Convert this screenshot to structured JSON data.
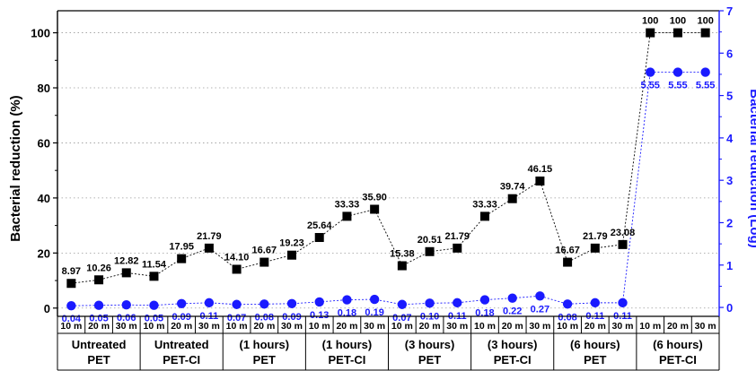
{
  "chart_data": {
    "type": "line",
    "ylabel": "Bacterial reduction (%)",
    "y2label": "Bacterial reduction (Log)",
    "ylim": [
      -3,
      108
    ],
    "y2lim": [
      -0.21,
      7
    ],
    "yticks": [
      0,
      20,
      40,
      60,
      80,
      100
    ],
    "y2ticks": [
      0,
      1,
      2,
      3,
      4,
      5,
      6,
      7
    ],
    "x": [
      "10 m",
      "20 m",
      "30 m",
      "10 m",
      "20 m",
      "30 m",
      "10 m",
      "20 m",
      "30 m",
      "10 m",
      "20 m",
      "30 m",
      "10 m",
      "20 m",
      "30 m",
      "10 m",
      "20 m",
      "30 m",
      "10 m",
      "20 m",
      "30 m",
      "10 m",
      "20 m",
      "30 m"
    ],
    "groups": [
      {
        "line1": "Untreated",
        "line2": "PET"
      },
      {
        "line1": "Untreated",
        "line2": "PET-CI"
      },
      {
        "line1": "(1 hours)",
        "line2": "PET"
      },
      {
        "line1": "(1 hours)",
        "line2": "PET-CI"
      },
      {
        "line1": "(3 hours)",
        "line2": "PET"
      },
      {
        "line1": "(3 hours)",
        "line2": "PET-CI"
      },
      {
        "line1": "(6 hours)",
        "line2": "PET"
      },
      {
        "line1": "(6 hours)",
        "line2": "PET-CI"
      }
    ],
    "series": [
      {
        "axis": "left",
        "color": "#000000",
        "marker": "square",
        "values": [
          8.97,
          10.26,
          12.82,
          11.54,
          17.95,
          21.79,
          14.1,
          16.67,
          19.23,
          25.64,
          33.33,
          35.9,
          15.38,
          20.51,
          21.79,
          33.33,
          39.74,
          46.15,
          16.67,
          21.79,
          23.08,
          100,
          100,
          100
        ],
        "labels": [
          "8.97",
          "10.26",
          "12.82",
          "11.54",
          "17.95",
          "21.79",
          "14.10",
          "16.67",
          "19.23",
          "25.64",
          "33.33",
          "35.90",
          "15.38",
          "20.51",
          "21.79",
          "33.33",
          "39.74",
          "46.15",
          "16.67",
          "21.79",
          "23.08",
          "100",
          "100",
          "100"
        ]
      },
      {
        "axis": "right",
        "color": "#1a1aff",
        "marker": "circle",
        "values": [
          0.04,
          0.05,
          0.06,
          0.05,
          0.09,
          0.11,
          0.07,
          0.08,
          0.09,
          0.13,
          0.18,
          0.19,
          0.07,
          0.1,
          0.11,
          0.18,
          0.22,
          0.27,
          0.08,
          0.11,
          0.11,
          5.55,
          5.55,
          5.55
        ],
        "labels": [
          "0.04",
          "0.05",
          "0.06",
          "0.05",
          "0.09",
          "0.11",
          "0.07",
          "0.08",
          "0.09",
          "0.13",
          "0.18",
          "0.19",
          "0.07",
          "0.10",
          "0.11",
          "0.18",
          "0.22",
          "0.27",
          "0.08",
          "0.11",
          "0.11",
          "5.55",
          "5.55",
          "5.55"
        ]
      }
    ],
    "grid": "horizontal-dotted",
    "colors": {
      "left_axis": "#000000",
      "right_axis": "#1a1aff"
    }
  }
}
